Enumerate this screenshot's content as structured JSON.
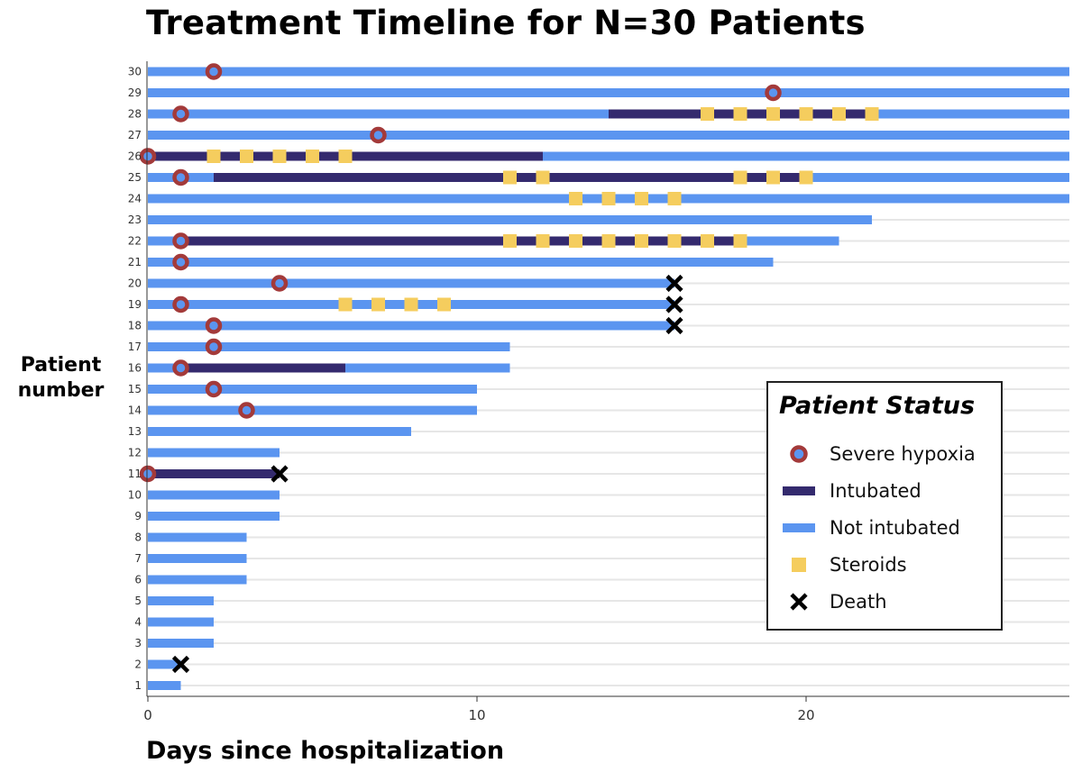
{
  "title": "Treatment Timeline for N=30 Patients",
  "colors": {
    "severe_hypoxia": "#a33a3a",
    "intubated": "#342a6e",
    "not_intubated": "#5b95f0",
    "steroids": "#f5cd5e",
    "death": "#000000",
    "gridline": "#e6e6e6"
  },
  "legend": {
    "title": "Patient Status",
    "items": [
      {
        "key": "severe_hypoxia",
        "label": "Severe hypoxia",
        "icon": "hollow-circle-icon"
      },
      {
        "key": "intubated",
        "label": "Intubated",
        "icon": "dark-bar-icon"
      },
      {
        "key": "not_intubated",
        "label": "Not intubated",
        "icon": "light-bar-icon"
      },
      {
        "key": "steroids",
        "label": "Steroids",
        "icon": "square-icon"
      },
      {
        "key": "death",
        "label": "Death",
        "icon": "x-mark-icon"
      }
    ]
  },
  "chart_data": {
    "type": "timeline",
    "title": "Treatment Timeline for N=30 Patients",
    "xlabel": "Days since hospitalization",
    "ylabel": "Patient number",
    "xlim": [
      0,
      28
    ],
    "ylim": [
      1,
      30
    ],
    "x_ticks": [
      0,
      10,
      20
    ],
    "y_ticks": [
      1,
      2,
      3,
      4,
      5,
      6,
      7,
      8,
      9,
      10,
      11,
      12,
      13,
      14,
      15,
      16,
      17,
      18,
      19,
      20,
      21,
      22,
      23,
      24,
      25,
      26,
      27,
      28,
      29,
      30
    ],
    "grid": "horizontal",
    "legend_position": "bottom-right",
    "patients": [
      {
        "id": 1,
        "end": 1,
        "intubated": [],
        "hypoxia": [],
        "steroids": [],
        "death": null
      },
      {
        "id": 2,
        "end": 1,
        "intubated": [],
        "hypoxia": [],
        "steroids": [],
        "death": 1
      },
      {
        "id": 3,
        "end": 2,
        "intubated": [],
        "hypoxia": [],
        "steroids": [],
        "death": null
      },
      {
        "id": 4,
        "end": 2,
        "intubated": [],
        "hypoxia": [],
        "steroids": [],
        "death": null
      },
      {
        "id": 5,
        "end": 2,
        "intubated": [],
        "hypoxia": [],
        "steroids": [],
        "death": null
      },
      {
        "id": 6,
        "end": 3,
        "intubated": [],
        "hypoxia": [],
        "steroids": [],
        "death": null
      },
      {
        "id": 7,
        "end": 3,
        "intubated": [],
        "hypoxia": [],
        "steroids": [],
        "death": null
      },
      {
        "id": 8,
        "end": 3,
        "intubated": [],
        "hypoxia": [],
        "steroids": [],
        "death": null
      },
      {
        "id": 9,
        "end": 4,
        "intubated": [],
        "hypoxia": [],
        "steroids": [],
        "death": null
      },
      {
        "id": 10,
        "end": 4,
        "intubated": [],
        "hypoxia": [],
        "steroids": [],
        "death": null
      },
      {
        "id": 11,
        "end": 4,
        "intubated": [
          [
            0,
            4
          ]
        ],
        "hypoxia": [
          0
        ],
        "steroids": [],
        "death": 4
      },
      {
        "id": 12,
        "end": 4,
        "intubated": [],
        "hypoxia": [],
        "steroids": [],
        "death": null
      },
      {
        "id": 13,
        "end": 8,
        "intubated": [],
        "hypoxia": [],
        "steroids": [],
        "death": null
      },
      {
        "id": 14,
        "end": 10,
        "intubated": [],
        "hypoxia": [
          3
        ],
        "steroids": [],
        "death": null
      },
      {
        "id": 15,
        "end": 10,
        "intubated": [],
        "hypoxia": [
          2
        ],
        "steroids": [],
        "death": null
      },
      {
        "id": 16,
        "end": 11,
        "intubated": [
          [
            1,
            6
          ]
        ],
        "hypoxia": [
          1
        ],
        "steroids": [],
        "death": null
      },
      {
        "id": 17,
        "end": 11,
        "intubated": [],
        "hypoxia": [
          2
        ],
        "steroids": [],
        "death": null
      },
      {
        "id": 18,
        "end": 16,
        "intubated": [],
        "hypoxia": [
          2
        ],
        "steroids": [],
        "death": 16
      },
      {
        "id": 19,
        "end": 16,
        "intubated": [],
        "hypoxia": [
          1
        ],
        "steroids": [
          6,
          7,
          8,
          9
        ],
        "death": 16
      },
      {
        "id": 20,
        "end": 16,
        "intubated": [],
        "hypoxia": [
          4
        ],
        "steroids": [],
        "death": 16
      },
      {
        "id": 21,
        "end": 19,
        "intubated": [],
        "hypoxia": [
          1
        ],
        "steroids": [],
        "death": null
      },
      {
        "id": 22,
        "end": 21,
        "intubated": [
          [
            1,
            18
          ]
        ],
        "hypoxia": [
          1
        ],
        "steroids": [
          11,
          12,
          13,
          14,
          15,
          16,
          17,
          18
        ],
        "death": null
      },
      {
        "id": 23,
        "end": 22,
        "intubated": [],
        "hypoxia": [],
        "steroids": [],
        "death": null
      },
      {
        "id": 24,
        "end": 28,
        "intubated": [],
        "hypoxia": [],
        "steroids": [
          13,
          14,
          15,
          16
        ],
        "death": null
      },
      {
        "id": 25,
        "end": 28,
        "intubated": [
          [
            2,
            20
          ]
        ],
        "hypoxia": [
          1
        ],
        "steroids": [
          11,
          12,
          18,
          19,
          20
        ],
        "death": null
      },
      {
        "id": 26,
        "end": 28,
        "intubated": [
          [
            0,
            12
          ]
        ],
        "hypoxia": [
          0
        ],
        "steroids": [
          2,
          3,
          4,
          5,
          6
        ],
        "death": null
      },
      {
        "id": 27,
        "end": 28,
        "intubated": [],
        "hypoxia": [
          7
        ],
        "steroids": [],
        "death": null
      },
      {
        "id": 28,
        "end": 28,
        "intubated": [
          [
            14,
            22
          ]
        ],
        "hypoxia": [
          1
        ],
        "steroids": [
          17,
          18,
          19,
          20,
          21,
          22
        ],
        "death": null
      },
      {
        "id": 29,
        "end": 28,
        "intubated": [],
        "hypoxia": [
          19
        ],
        "steroids": [],
        "death": null
      },
      {
        "id": 30,
        "end": 28,
        "intubated": [],
        "hypoxia": [
          2
        ],
        "steroids": [],
        "death": null
      }
    ]
  }
}
